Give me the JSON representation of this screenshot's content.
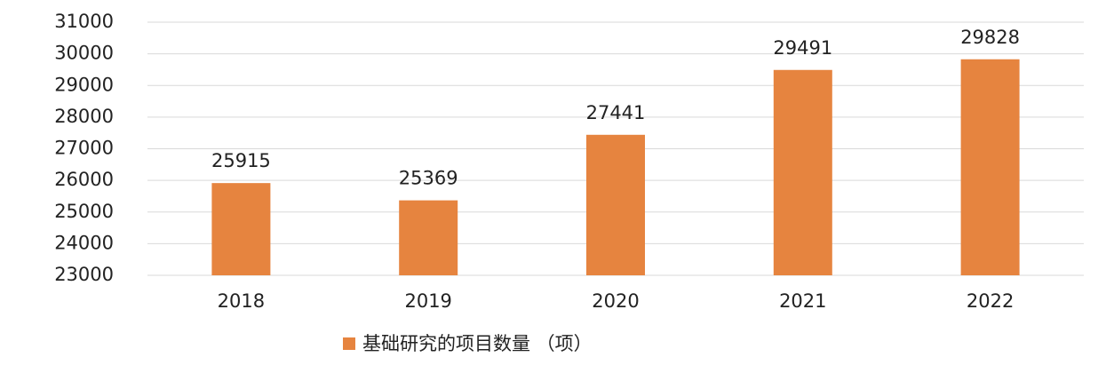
{
  "chart_data": {
    "type": "bar",
    "categories": [
      "2018",
      "2019",
      "2020",
      "2021",
      "2022"
    ],
    "series": [
      {
        "name": "基础研究的项目数量 （项）",
        "color": "#e6843f",
        "values": [
          25915,
          25369,
          27441,
          29491,
          29828
        ]
      }
    ],
    "ylim": [
      23000,
      31000
    ],
    "yticks": [
      23000,
      24000,
      25000,
      26000,
      27000,
      28000,
      29000,
      30000,
      31000
    ],
    "grid": true,
    "legend": "bottom"
  }
}
